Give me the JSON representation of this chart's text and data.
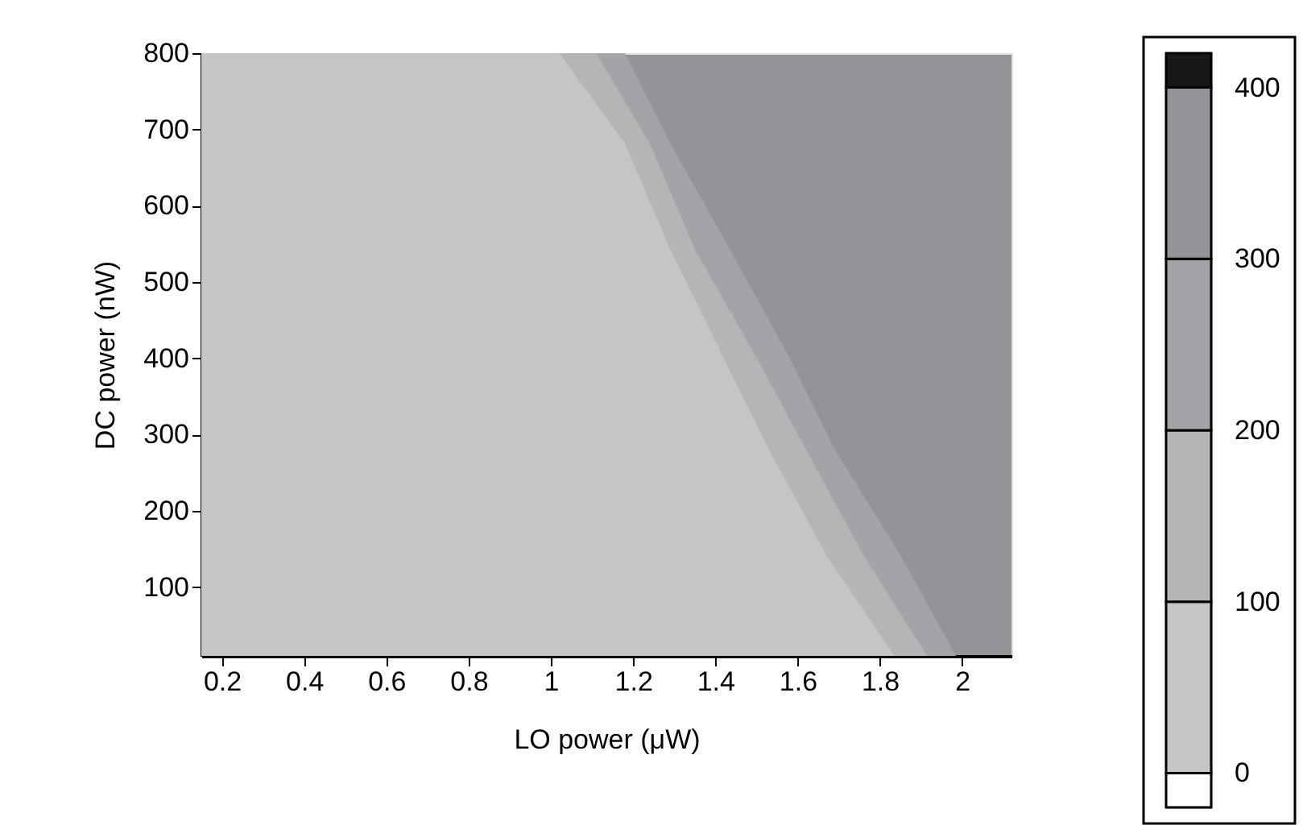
{
  "chart_data": {
    "type": "area",
    "orientation": "horizontal",
    "xlabel": "LO power (μW)",
    "ylabel": "DC power (nW)",
    "xlim": [
      0.15,
      2.12
    ],
    "xticks": [
      0.2,
      0.4,
      0.6,
      0.8,
      1,
      1.2,
      1.4,
      1.6,
      1.8,
      2
    ],
    "ylim": [
      10,
      800
    ],
    "yticks": [
      100,
      200,
      300,
      400,
      500,
      600,
      700,
      800
    ],
    "series": [
      {
        "color": "#a3a4a7",
        "x": [
          800,
          682,
          543,
          401,
          281,
          142,
          10
        ],
        "values": [
          1.18,
          1.29,
          1.435,
          1.58,
          1.69,
          1.85,
          1.985
        ]
      },
      {
        "color": "#b4b5b7",
        "x": [
          800,
          682,
          543,
          401,
          281,
          142,
          10
        ],
        "values": [
          1.11,
          1.24,
          1.35,
          1.5,
          1.62,
          1.76,
          1.915
        ]
      },
      {
        "color": "#c4c5c7",
        "x": [
          800,
          682,
          543,
          401,
          281,
          142,
          10
        ],
        "values": [
          1.02,
          1.18,
          1.29,
          1.42,
          1.53,
          1.67,
          1.835
        ]
      }
    ],
    "clim": [
      -20,
      420
    ],
    "cticks": [
      0,
      100,
      200,
      300,
      400
    ],
    "colors": [
      "#ffffff",
      "#c4c5c7",
      "#b4b5b7",
      "#a3a4a7",
      "#939498",
      "#1a1718"
    ]
  }
}
